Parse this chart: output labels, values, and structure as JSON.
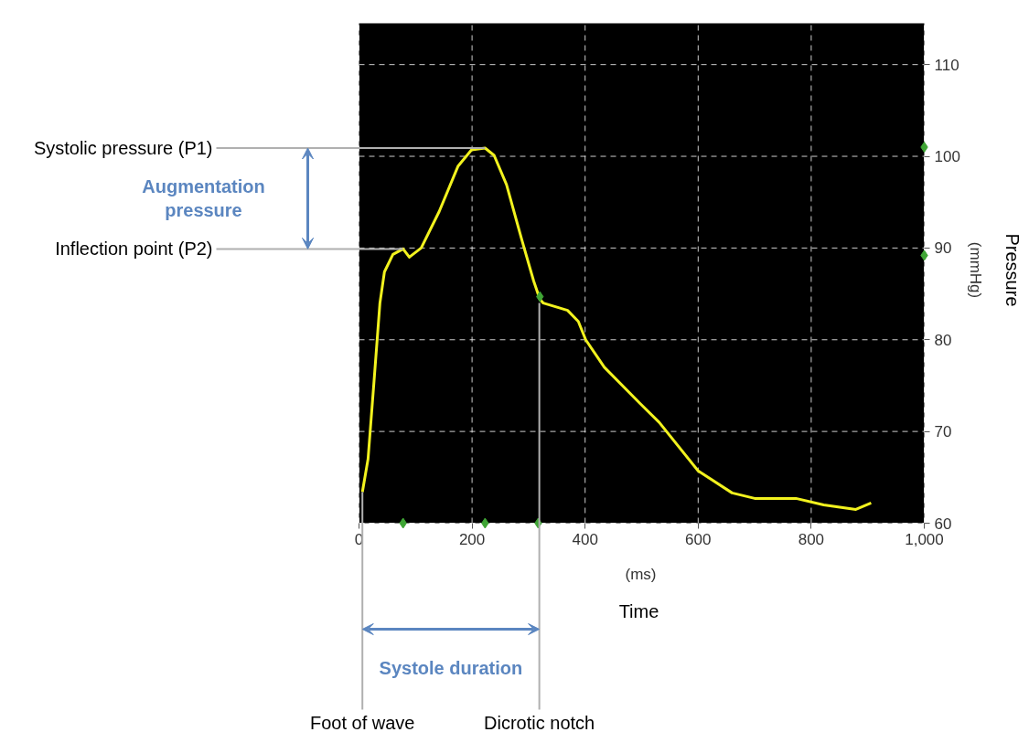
{
  "chart_data": {
    "type": "line",
    "xlabel": "(ms)",
    "ylabel": "(mmHg)",
    "xlim": [
      0,
      1000
    ],
    "ylim": [
      60,
      114.5
    ],
    "xticks": [
      0,
      200,
      400,
      600,
      800,
      {
        "value": 1000,
        "label": "1,000"
      }
    ],
    "yticks": [
      60,
      70,
      80,
      90,
      100,
      110
    ],
    "grid": true,
    "series": [
      {
        "color": "#f2f21e",
        "x": [
          6,
          16,
          26,
          37,
          45,
          60,
          78,
          89,
          110,
          142,
          175,
          199,
          223,
          239,
          261,
          288,
          309,
          320,
          326,
          353,
          369,
          388,
          401,
          434,
          498,
          531,
          600,
          660,
          700,
          773,
          822,
          879,
          906
        ],
        "values": [
          63.4,
          67,
          75,
          84,
          87.4,
          89.3,
          89.9,
          89,
          90,
          94,
          98.9,
          100.7,
          100.9,
          100.1,
          96.9,
          90.9,
          86.4,
          84.4,
          84,
          83.5,
          83.2,
          82,
          80,
          77,
          73,
          71,
          65.7,
          63.3,
          62.7,
          62.7,
          62,
          61.5,
          62.2
        ]
      },
      {
        "type": "scatter",
        "marker": "diamond",
        "color": "#3fa535",
        "x": [
          78,
          223,
          317,
          320,
          1000,
          1000
        ],
        "values": [
          60,
          60,
          60,
          84.7,
          101,
          89.2
        ]
      }
    ],
    "annotations": [
      {
        "text": "Systolic pressure (P1)",
        "x": 223,
        "y": 100.9
      },
      {
        "text": "Inflection point (P2)",
        "x": 78,
        "y": 89.9
      },
      "Augmentation\npressure",
      {
        "text": "Foot of wave",
        "x": 6,
        "y": 63.4
      },
      {
        "text": "Dicrotic notch",
        "x": 319,
        "y": 84
      },
      "Systole duration",
      "Time",
      "Pressure"
    ]
  }
}
